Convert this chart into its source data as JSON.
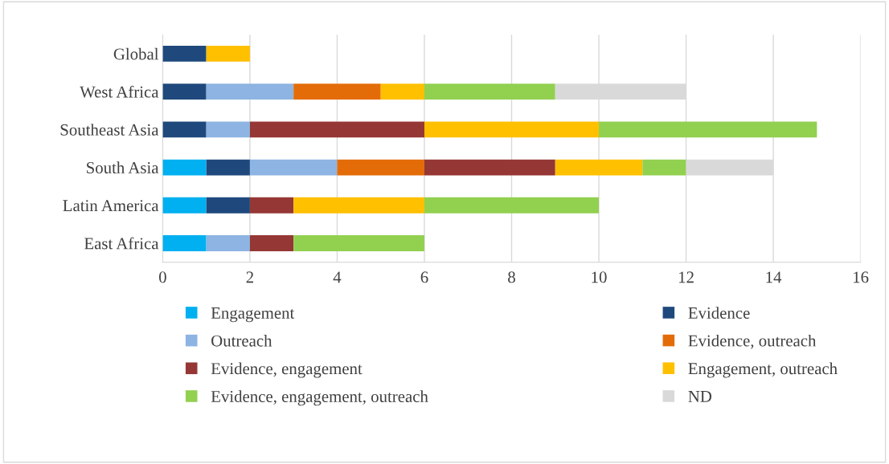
{
  "chart_data": {
    "type": "bar",
    "orientation": "horizontal",
    "stacked": true,
    "categories": [
      "Global",
      "West Africa",
      "Southeast Asia",
      "South Asia",
      "Latin America",
      "East Africa"
    ],
    "series": [
      {
        "name": "Engagement",
        "color": "#00b0f0",
        "values": [
          0,
          0,
          0,
          1,
          1,
          1
        ]
      },
      {
        "name": "Evidence",
        "color": "#1f497d",
        "values": [
          1,
          1,
          1,
          1,
          1,
          0
        ]
      },
      {
        "name": "Outreach",
        "color": "#8db4e2",
        "values": [
          0,
          2,
          1,
          2,
          0,
          1
        ]
      },
      {
        "name": "Evidence, outreach",
        "color": "#e36c09",
        "values": [
          0,
          2,
          0,
          2,
          0,
          0
        ]
      },
      {
        "name": "Evidence, engagement",
        "color": "#953735",
        "values": [
          0,
          0,
          4,
          3,
          1,
          1
        ]
      },
      {
        "name": "Engagement, outreach",
        "color": "#ffc000",
        "values": [
          1,
          1,
          4,
          2,
          3,
          0
        ]
      },
      {
        "name": "Evidence, engagement, outreach",
        "color": "#92d050",
        "values": [
          0,
          3,
          5,
          1,
          4,
          3
        ]
      },
      {
        "name": "ND",
        "color": "#d9d9d9",
        "values": [
          0,
          3,
          0,
          2,
          0,
          0
        ]
      }
    ],
    "xlim": [
      0,
      16
    ],
    "xticks": [
      0,
      2,
      4,
      6,
      8,
      10,
      12,
      14,
      16
    ],
    "grid": "x",
    "legend": "bottom"
  }
}
